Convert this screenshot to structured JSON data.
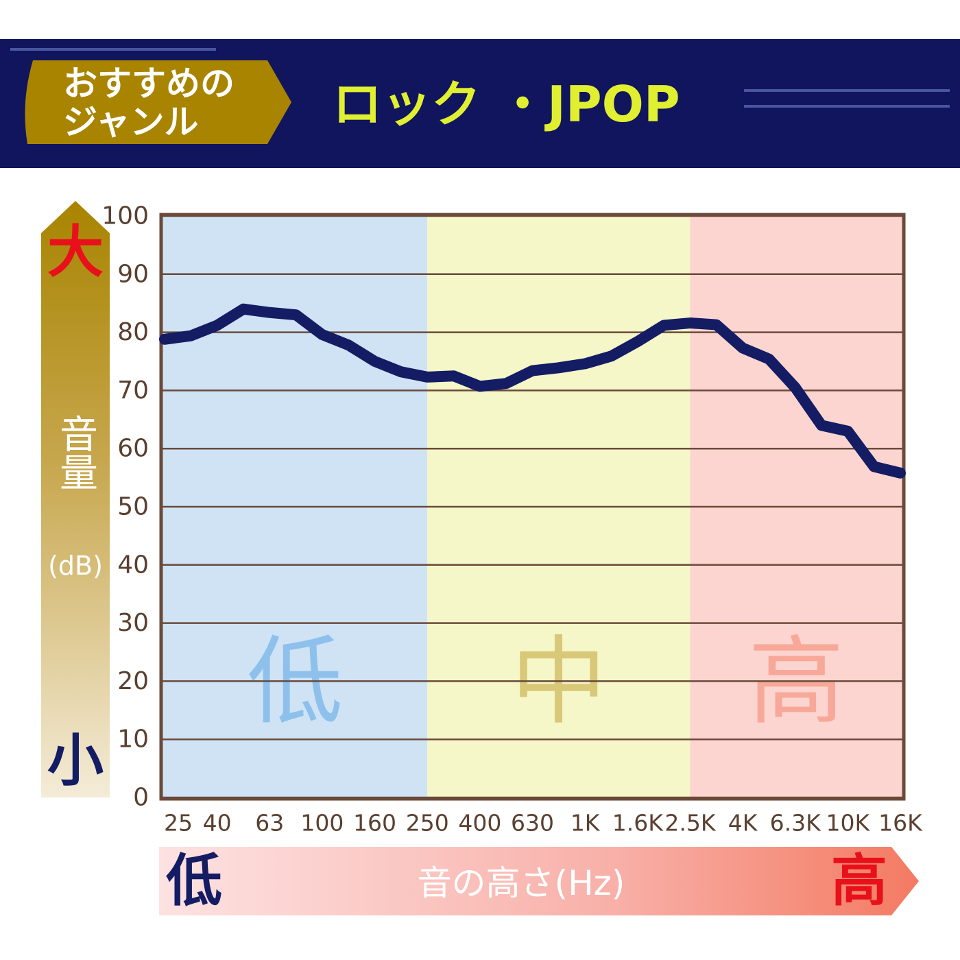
{
  "header": {
    "badge": [
      "おすすめの",
      "ジャンル"
    ],
    "title": "ロック ・JPOP"
  },
  "chart_data": {
    "type": "line",
    "categories": [
      "25",
      null,
      "40",
      null,
      "63",
      null,
      "100",
      null,
      "160",
      null,
      "250",
      null,
      "400",
      null,
      "630",
      null,
      "1K",
      null,
      "1.6K",
      null,
      "2.5K",
      null,
      "4K",
      null,
      "6.3K",
      null,
      "10K",
      null,
      "16K"
    ],
    "series": [
      {
        "name": "ロック・JPOP",
        "color": "#141c64",
        "values": [
          78.8,
          79.4,
          81.2,
          84.0,
          83.4,
          83.0,
          79.6,
          77.8,
          75.0,
          73.2,
          72.3,
          72.5,
          70.7,
          71.2,
          73.4,
          73.9,
          74.6,
          75.9,
          78.4,
          81.2,
          81.6,
          81.3,
          77.3,
          75.4,
          70.5,
          64.0,
          63.0,
          56.9,
          55.8
        ]
      }
    ],
    "ylim": [
      0,
      100
    ],
    "yticks": [
      0,
      10,
      20,
      30,
      40,
      50,
      60,
      70,
      80,
      90,
      100
    ],
    "grid": true,
    "y_axis": {
      "top": "大",
      "label": "音量",
      "unit": "(dB)",
      "bottom": "小"
    },
    "x_axis": {
      "left": "低",
      "label": "音の高さ(Hz)",
      "right": "高"
    },
    "bands": [
      {
        "label": "低",
        "from": "25",
        "to": "250",
        "color": "#cfe3f5",
        "label_color": "#8ec0ec"
      },
      {
        "label": "中",
        "from": "250",
        "to": "2.5K",
        "color": "#f5f7c8",
        "label_color": "#d8c878"
      },
      {
        "label": "高",
        "from": "2.5K",
        "to": "16K",
        "color": "#fdd5d0",
        "label_color": "#f8a898"
      }
    ]
  }
}
